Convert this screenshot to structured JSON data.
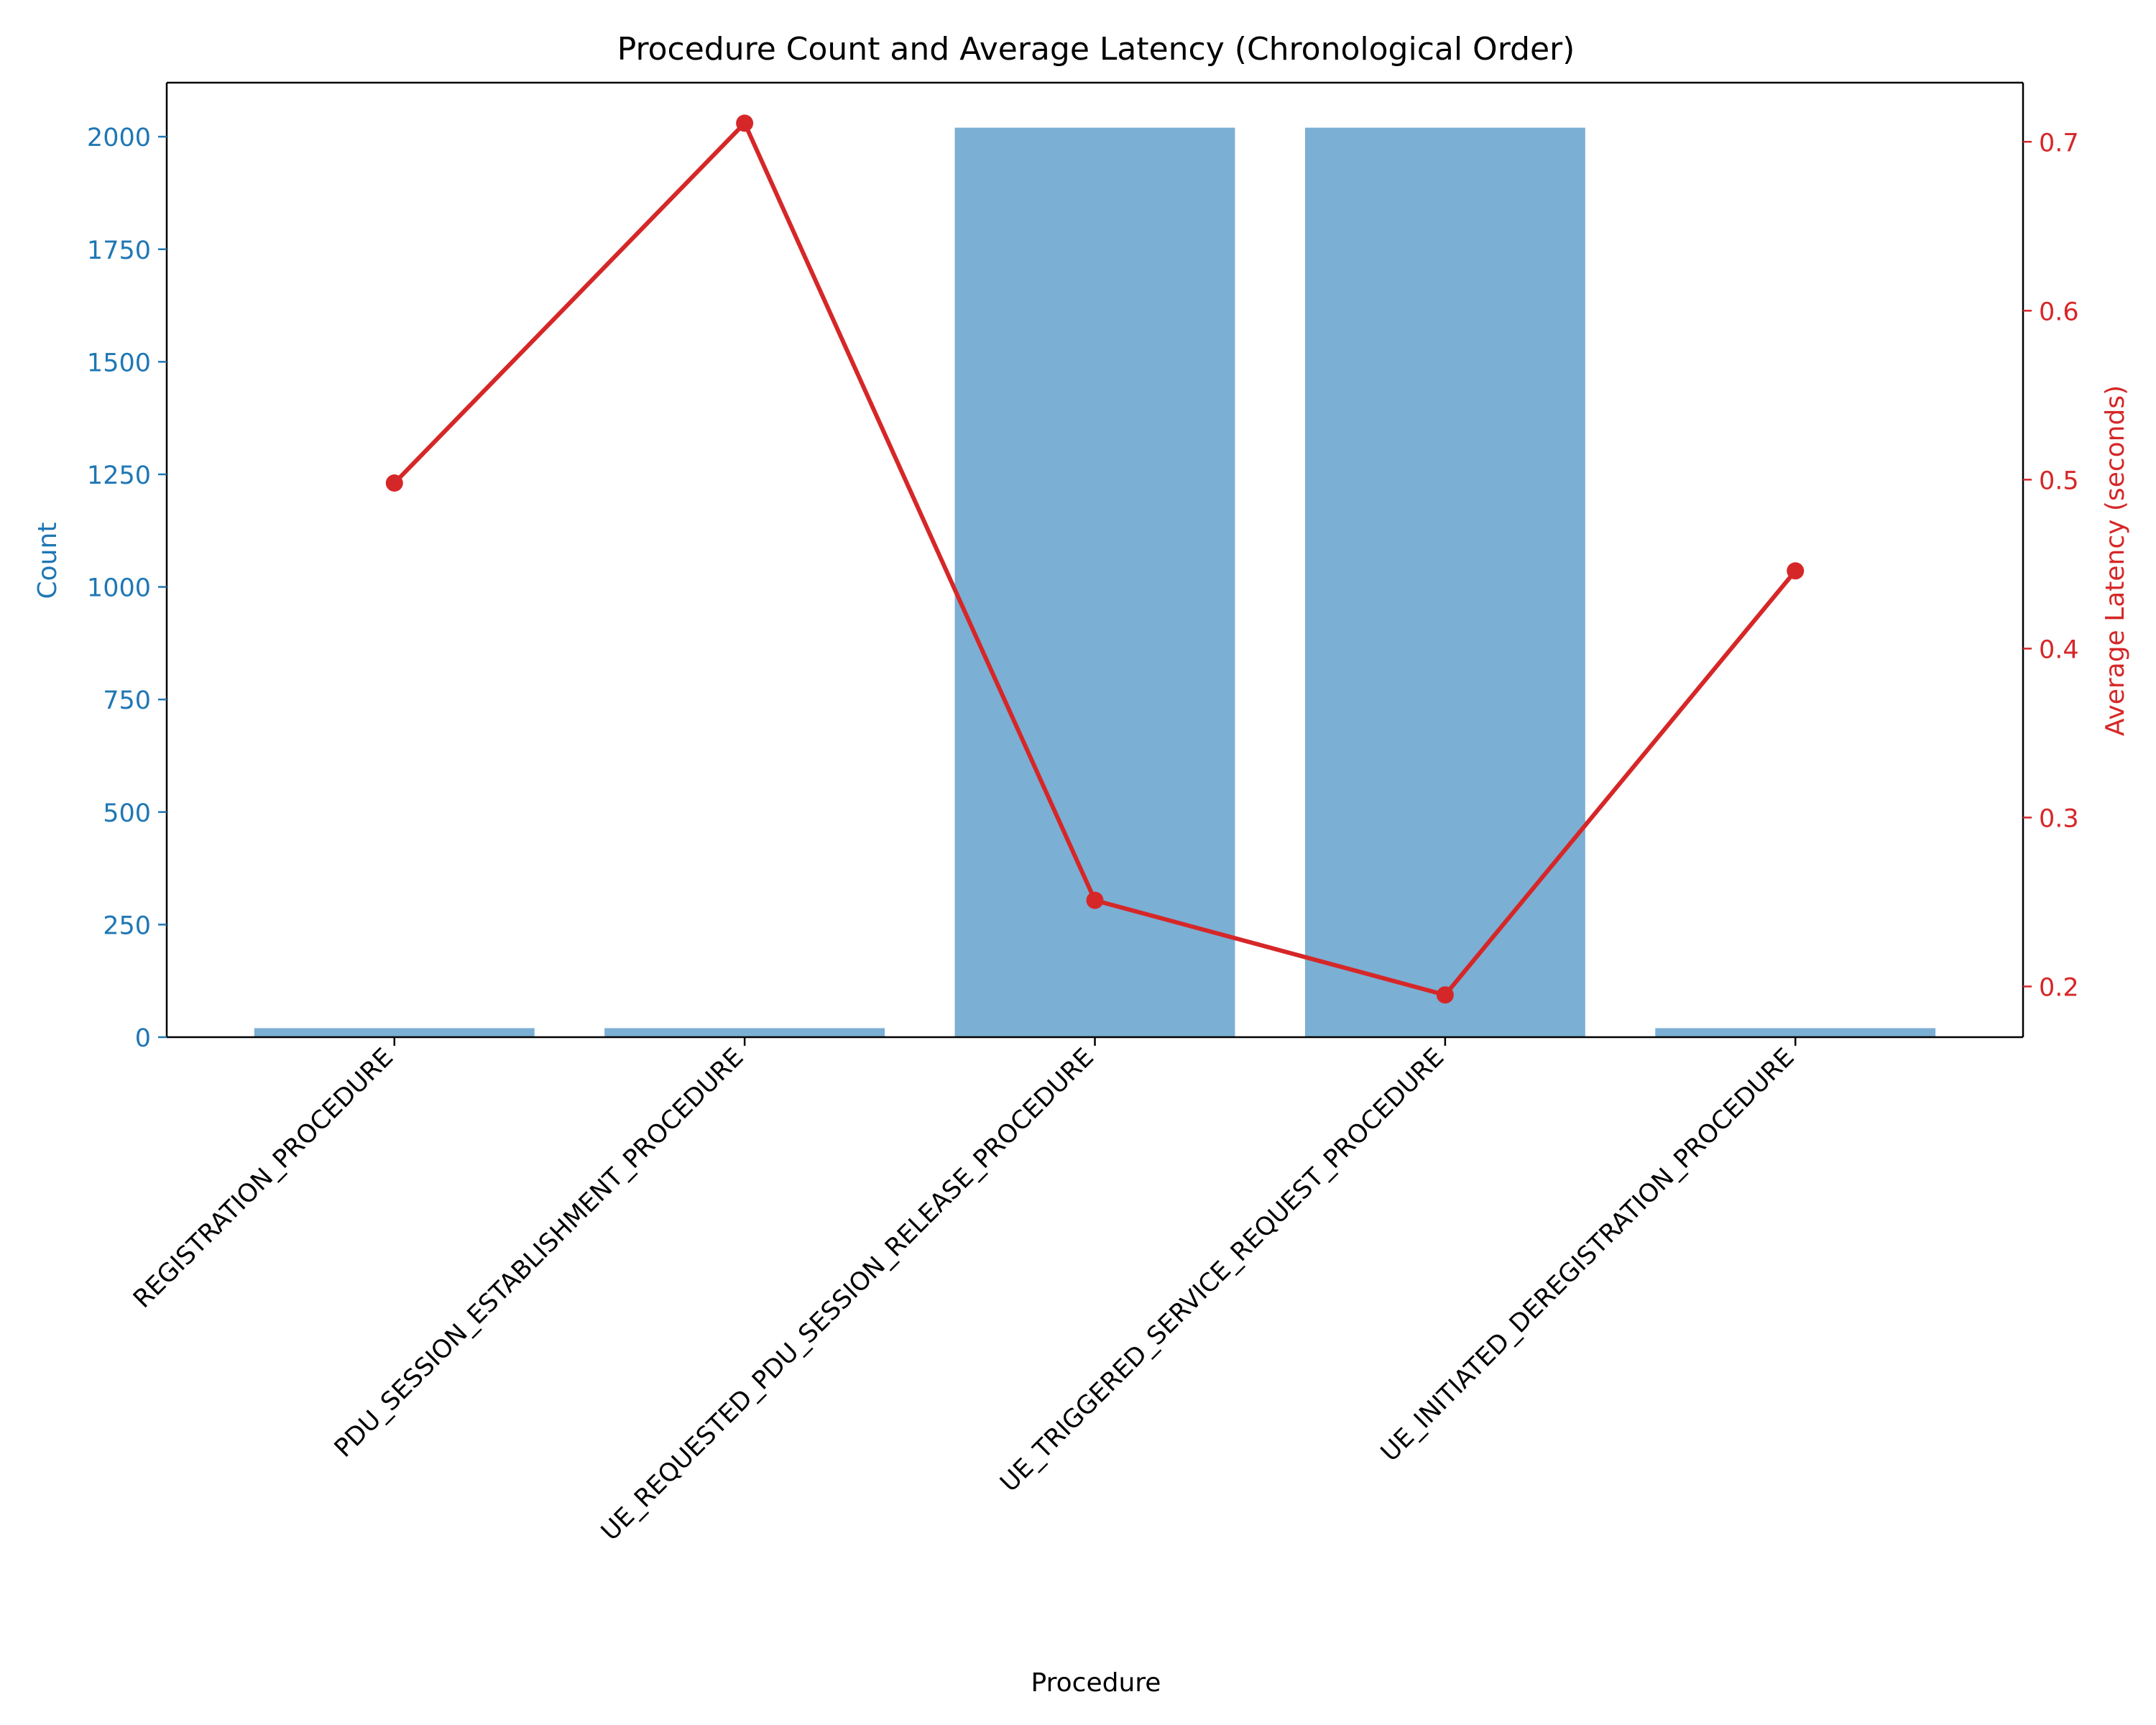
{
  "chart_data": {
    "type": "bar+line",
    "title": "Procedure Count and Average Latency (Chronological Order)",
    "xlabel": "Procedure",
    "categories": [
      "REGISTRATION_PROCEDURE",
      "PDU_SESSION_ESTABLISHMENT_PROCEDURE",
      "UE_REQUESTED_PDU_SESSION_RELEASE_PROCEDURE",
      "UE_TRIGGERED_SERVICE_REQUEST_PROCEDURE",
      "UE_INITIATED_DEREGISTRATION_PROCEDURE"
    ],
    "left_axis": {
      "label": "Count",
      "color": "#1f77b4",
      "ylim": [
        0,
        2120
      ],
      "ticks": [
        0,
        250,
        500,
        750,
        1000,
        1250,
        1500,
        1750,
        2000
      ]
    },
    "right_axis": {
      "label": "Average Latency (seconds)",
      "color": "#d62728",
      "ylim": [
        0.17,
        0.735
      ],
      "ticks": [
        0.2,
        0.3,
        0.4,
        0.5,
        0.6,
        0.7
      ]
    },
    "series": [
      {
        "type": "bar",
        "axis": "left",
        "color": "#7bafd4",
        "values": [
          20,
          20,
          2020,
          2020,
          20
        ]
      },
      {
        "type": "line",
        "axis": "right",
        "color": "#d62728",
        "marker": "circle",
        "values": [
          0.498,
          0.711,
          0.251,
          0.195,
          0.446
        ]
      }
    ]
  }
}
